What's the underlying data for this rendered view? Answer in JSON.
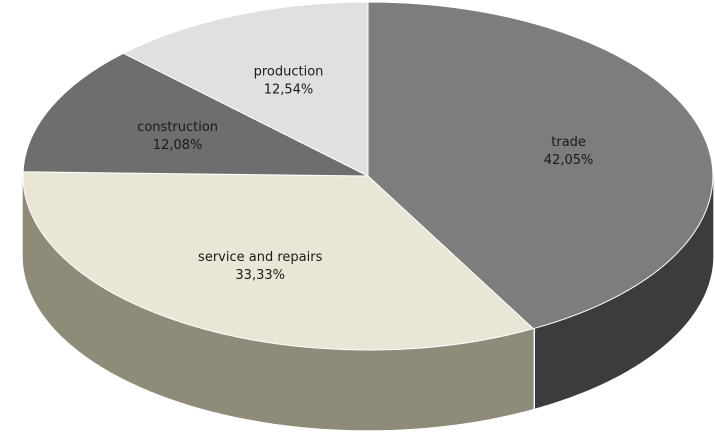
{
  "chart_data": {
    "type": "pie",
    "style": "3d-exploded-none",
    "slices": [
      {
        "label": "trade",
        "value_text": "42,05%",
        "value": 42.05,
        "color": "#7d7d7d",
        "side_color": "#3c3c3c"
      },
      {
        "label": "service and repairs",
        "value_text": "33,33%",
        "value": 33.33,
        "color": "#e9e6d6",
        "side_color": "#8e8b78"
      },
      {
        "label": "construction",
        "value_text": "12,08%",
        "value": 12.08,
        "color": "#6e6e6e",
        "side_color": "#4a4a4a"
      },
      {
        "label": "production",
        "value_text": "12,54%",
        "value": 12.54,
        "color": "#e0e0e0",
        "side_color": "#a8a8a8"
      }
    ]
  }
}
